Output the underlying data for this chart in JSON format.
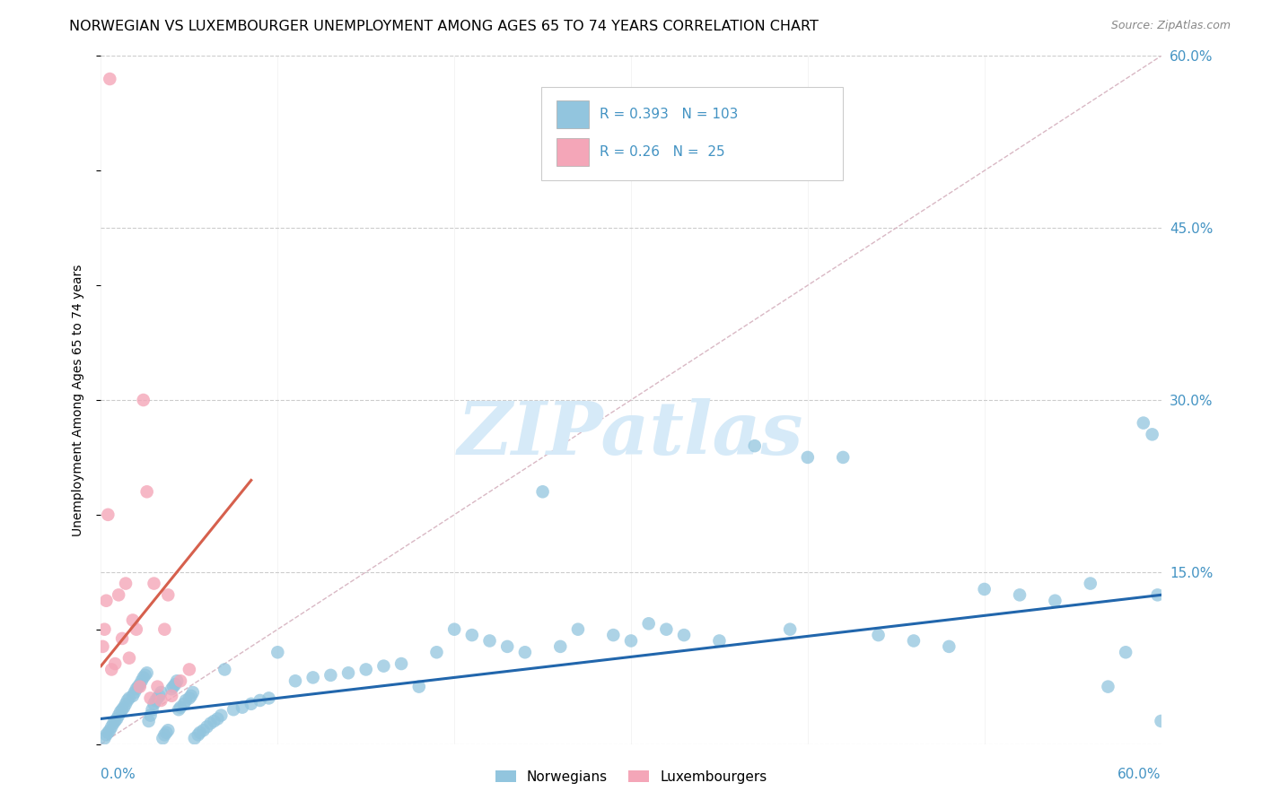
{
  "title": "NORWEGIAN VS LUXEMBOURGER UNEMPLOYMENT AMONG AGES 65 TO 74 YEARS CORRELATION CHART",
  "source": "Source: ZipAtlas.com",
  "ylabel": "Unemployment Among Ages 65 to 74 years",
  "xlim": [
    0.0,
    0.6
  ],
  "ylim": [
    0.0,
    0.6
  ],
  "yticks": [
    0.0,
    0.15,
    0.3,
    0.45,
    0.6
  ],
  "ytick_labels_right": [
    "",
    "15.0%",
    "30.0%",
    "45.0%",
    "60.0%"
  ],
  "xtick_left_label": "0.0%",
  "xtick_right_label": "60.0%",
  "norwegian_R": 0.393,
  "norwegian_N": 103,
  "luxembourger_R": 0.26,
  "luxembourger_N": 25,
  "norwegian_color": "#92c5de",
  "luxembourger_color": "#f4a6b8",
  "norwegian_line_color": "#2166ac",
  "luxembourger_line_color": "#d6604d",
  "diagonal_color": "#d9b8c4",
  "background_color": "#ffffff",
  "grid_color": "#cccccc",
  "axis_label_color": "#4393c3",
  "watermark_color": "#d6eaf8",
  "nor_x": [
    0.002,
    0.003,
    0.004,
    0.005,
    0.006,
    0.007,
    0.008,
    0.009,
    0.01,
    0.011,
    0.012,
    0.013,
    0.014,
    0.015,
    0.016,
    0.018,
    0.019,
    0.02,
    0.021,
    0.022,
    0.023,
    0.024,
    0.025,
    0.026,
    0.027,
    0.028,
    0.029,
    0.03,
    0.031,
    0.032,
    0.033,
    0.034,
    0.035,
    0.036,
    0.037,
    0.038,
    0.04,
    0.041,
    0.042,
    0.043,
    0.044,
    0.045,
    0.047,
    0.048,
    0.05,
    0.051,
    0.052,
    0.053,
    0.055,
    0.056,
    0.058,
    0.06,
    0.062,
    0.064,
    0.066,
    0.068,
    0.07,
    0.075,
    0.08,
    0.085,
    0.09,
    0.095,
    0.1,
    0.11,
    0.12,
    0.13,
    0.14,
    0.15,
    0.16,
    0.17,
    0.18,
    0.19,
    0.2,
    0.21,
    0.22,
    0.23,
    0.24,
    0.25,
    0.26,
    0.27,
    0.29,
    0.3,
    0.31,
    0.32,
    0.33,
    0.35,
    0.37,
    0.39,
    0.4,
    0.42,
    0.44,
    0.46,
    0.48,
    0.5,
    0.52,
    0.54,
    0.56,
    0.57,
    0.58,
    0.59,
    0.595,
    0.598,
    0.6
  ],
  "nor_y": [
    0.005,
    0.008,
    0.01,
    0.012,
    0.015,
    0.018,
    0.02,
    0.022,
    0.025,
    0.028,
    0.03,
    0.032,
    0.035,
    0.038,
    0.04,
    0.042,
    0.045,
    0.048,
    0.05,
    0.052,
    0.055,
    0.058,
    0.06,
    0.062,
    0.02,
    0.025,
    0.03,
    0.035,
    0.038,
    0.04,
    0.042,
    0.045,
    0.005,
    0.008,
    0.01,
    0.012,
    0.048,
    0.05,
    0.052,
    0.055,
    0.03,
    0.032,
    0.035,
    0.038,
    0.04,
    0.042,
    0.045,
    0.005,
    0.008,
    0.01,
    0.012,
    0.015,
    0.018,
    0.02,
    0.022,
    0.025,
    0.065,
    0.03,
    0.032,
    0.035,
    0.038,
    0.04,
    0.08,
    0.055,
    0.058,
    0.06,
    0.062,
    0.065,
    0.068,
    0.07,
    0.05,
    0.08,
    0.1,
    0.095,
    0.09,
    0.085,
    0.08,
    0.22,
    0.085,
    0.1,
    0.095,
    0.09,
    0.105,
    0.1,
    0.095,
    0.09,
    0.26,
    0.1,
    0.25,
    0.25,
    0.095,
    0.09,
    0.085,
    0.135,
    0.13,
    0.125,
    0.14,
    0.05,
    0.08,
    0.28,
    0.27,
    0.13,
    0.02
  ],
  "lux_x": [
    0.001,
    0.002,
    0.003,
    0.004,
    0.005,
    0.006,
    0.008,
    0.01,
    0.012,
    0.014,
    0.016,
    0.018,
    0.02,
    0.022,
    0.024,
    0.026,
    0.028,
    0.03,
    0.032,
    0.034,
    0.036,
    0.038,
    0.04,
    0.045,
    0.05
  ],
  "lux_y": [
    0.085,
    0.1,
    0.125,
    0.2,
    0.58,
    0.065,
    0.07,
    0.13,
    0.092,
    0.14,
    0.075,
    0.108,
    0.1,
    0.05,
    0.3,
    0.22,
    0.04,
    0.14,
    0.05,
    0.038,
    0.1,
    0.13,
    0.042,
    0.055,
    0.065
  ],
  "nor_trend_x": [
    0.0,
    0.6
  ],
  "nor_trend_y": [
    0.022,
    0.13
  ],
  "lux_trend_x": [
    0.0,
    0.085
  ],
  "lux_trend_y": [
    0.068,
    0.23
  ]
}
